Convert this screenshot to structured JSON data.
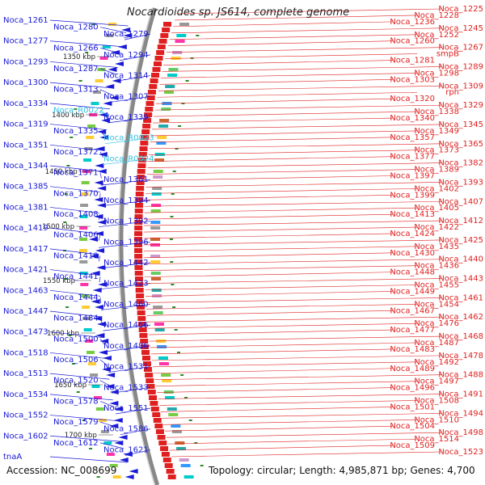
{
  "title": "Nocardioides sp. JS614, complete genome",
  "accession_text": "Accession: NC_008699",
  "summary_text": "Topology: circular; Length: 4,985,871 bp; Genes: 4,700",
  "colors": {
    "forward": "#1a1ad6",
    "reverse": "#e02020",
    "rna": "#33c1e0",
    "backbone": "#888888"
  },
  "kbp_marks": [
    "1350 kbp",
    "1400 kbp",
    "1450 kbp",
    "1500 kbp",
    "1550 kbp",
    "1600 kbp",
    "1650 kbp",
    "1700 kbp"
  ],
  "left_labels": [
    {
      "t": "Noca_1261",
      "rna": false
    },
    {
      "t": "Noca_1280",
      "rna": false
    },
    {
      "t": "Noca_1279",
      "rna": false
    },
    {
      "t": "Noca_1277",
      "rna": false
    },
    {
      "t": "Noca_1266",
      "rna": false
    },
    {
      "t": "Noca_1294",
      "rna": false
    },
    {
      "t": "Noca_1293",
      "rna": false
    },
    {
      "t": "Noca_1287",
      "rna": false
    },
    {
      "t": "Noca_1314",
      "rna": false
    },
    {
      "t": "Noca_1300",
      "rna": false
    },
    {
      "t": "Noca_1313",
      "rna": false
    },
    {
      "t": "Noca_1307",
      "rna": false
    },
    {
      "t": "Noca_1334",
      "rna": false
    },
    {
      "t": "Noca_R0022",
      "rna": true
    },
    {
      "t": "Noca_1339",
      "rna": false
    },
    {
      "t": "Noca_1319",
      "rna": false
    },
    {
      "t": "Noca_1335",
      "rna": false
    },
    {
      "t": "Noca_R0023",
      "rna": true
    },
    {
      "t": "Noca_1351",
      "rna": false
    },
    {
      "t": "Noca_1372",
      "rna": false
    },
    {
      "t": "Noca_R0024",
      "rna": true
    },
    {
      "t": "Noca_1344",
      "rna": false
    },
    {
      "t": "Noca_1371",
      "rna": false
    },
    {
      "t": "Noca_1361",
      "rna": false
    },
    {
      "t": "Noca_1385",
      "rna": false
    },
    {
      "t": "Noca_1370",
      "rna": false
    },
    {
      "t": "Noca_1394",
      "rna": false
    },
    {
      "t": "Noca_1381",
      "rna": false
    },
    {
      "t": "Noca_1408",
      "rna": false
    },
    {
      "t": "Noca_1392",
      "rna": false
    },
    {
      "t": "Noca_1419",
      "rna": false
    },
    {
      "t": "Noca_1406",
      "rna": false
    },
    {
      "t": "Noca_1396",
      "rna": false
    },
    {
      "t": "Noca_1417",
      "rna": false
    },
    {
      "t": "Noca_1410",
      "rna": false
    },
    {
      "t": "Noca_1442",
      "rna": false
    },
    {
      "t": "Noca_1421",
      "rna": false
    },
    {
      "t": "Noca_1441",
      "rna": false
    },
    {
      "t": "Noca_1423",
      "rna": false
    },
    {
      "t": "Noca_1463",
      "rna": false
    },
    {
      "t": "Noca_1444",
      "rna": false
    },
    {
      "t": "Noca_1460",
      "rna": false
    },
    {
      "t": "Noca_1447",
      "rna": false
    },
    {
      "t": "Noca_1484",
      "rna": false
    },
    {
      "t": "Noca_1466",
      "rna": false
    },
    {
      "t": "Noca_1473",
      "rna": false
    },
    {
      "t": "Noca_1500",
      "rna": false
    },
    {
      "t": "Noca_1486",
      "rna": false
    },
    {
      "t": "Noca_1518",
      "rna": false
    },
    {
      "t": "Noca_1506",
      "rna": false
    },
    {
      "t": "Noca_1531",
      "rna": false
    },
    {
      "t": "Noca_1513",
      "rna": false
    },
    {
      "t": "Noca_1520",
      "rna": false
    },
    {
      "t": "Noca_1533",
      "rna": false
    },
    {
      "t": "Noca_1534",
      "rna": false
    },
    {
      "t": "Noca_1578",
      "rna": false
    },
    {
      "t": "Noca_1551",
      "rna": false
    },
    {
      "t": "Noca_1552",
      "rna": false
    },
    {
      "t": "Noca_1579",
      "rna": false
    },
    {
      "t": "Noca_1586",
      "rna": false
    },
    {
      "t": "Noca_1602",
      "rna": false
    },
    {
      "t": "Noca_1612",
      "rna": false
    },
    {
      "t": "Noca_1621",
      "rna": false
    },
    {
      "t": "tnaA",
      "rna": false
    }
  ],
  "right_labels": [
    "Noca_1225",
    "Noca_1228",
    "Noca_1236",
    "Noca_1245",
    "Noca_1252",
    "Noca_1260",
    "Noca_1267",
    "smpB",
    "Noca_1281",
    "Noca_1289",
    "Noca_1298",
    "Noca_1303",
    "Noca_1309",
    "rph",
    "Noca_1320",
    "Noca_1329",
    "Noca_1338",
    "Noca_1340",
    "Noca_1345",
    "Noca_1349",
    "Noca_1357",
    "Noca_1365",
    "Noca_1373",
    "Noca_1377",
    "Noca_1382",
    "Noca_1389",
    "Noca_1397",
    "Noca_1393",
    "Noca_1402",
    "Noca_1399",
    "Noca_1407",
    "Noca_1405",
    "Noca_1413",
    "Noca_1412",
    "Noca_1422",
    "Noca_1424",
    "Noca_1425",
    "Noca_1435",
    "Noca_1430",
    "Noca_1440",
    "Noca_1436",
    "Noca_1448",
    "Noca_1443",
    "Noca_1455",
    "Noca_1449",
    "Noca_1461",
    "Noca_1454",
    "Noca_1467",
    "Noca_1462",
    "Noca_1476",
    "Noca_1477",
    "Noca_1468",
    "Noca_1487",
    "Noca_1483",
    "Noca_1478",
    "Noca_1492",
    "Noca_1489",
    "Noca_1488",
    "Noca_1497",
    "Noca_1496",
    "Noca_1491",
    "Noca_1508",
    "Noca_1501",
    "Noca_1494",
    "Noca_1510",
    "Noca_1504",
    "Noca_1498",
    "Noca_1514",
    "Noca_1509",
    "Noca_1523"
  ]
}
